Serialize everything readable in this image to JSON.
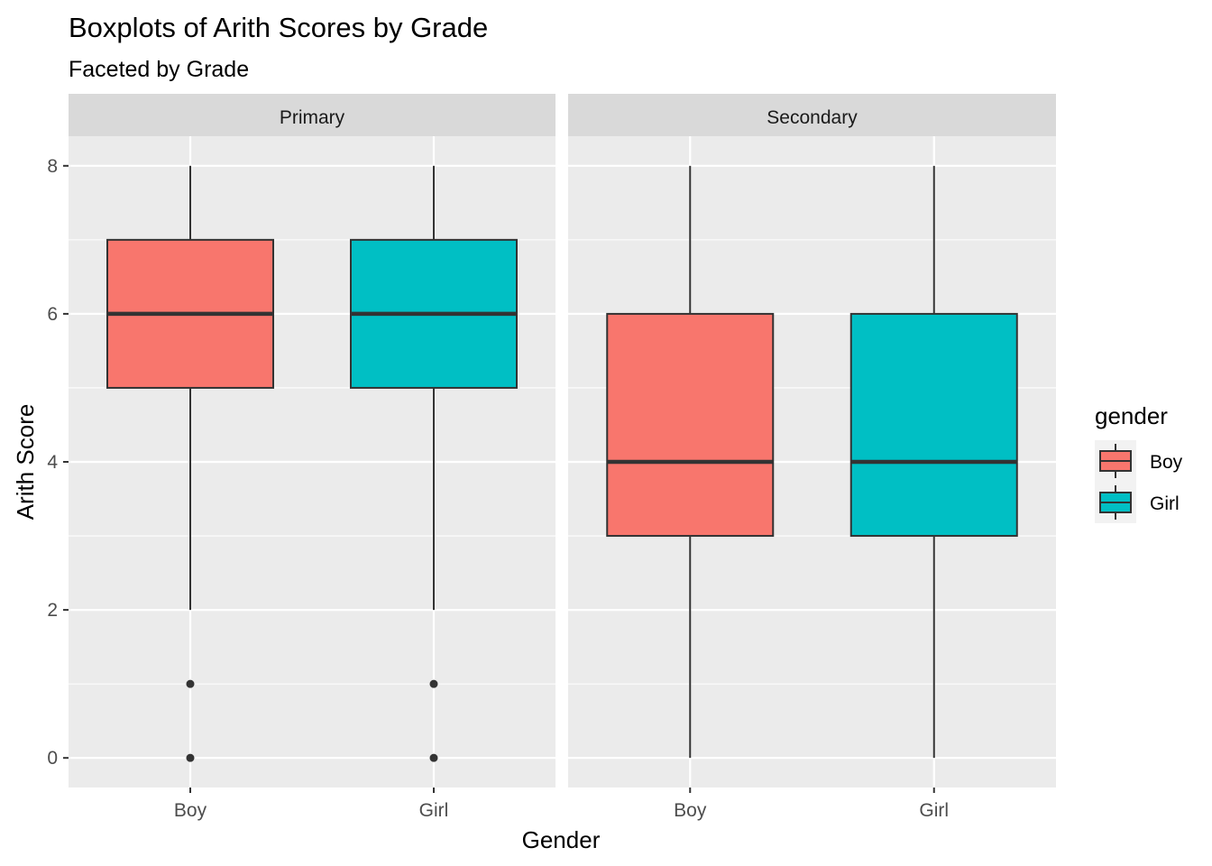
{
  "chart_data": {
    "type": "boxplot",
    "title": "Boxplots of Arith Scores by Grade",
    "subtitle": "Faceted by Grade",
    "xlabel": "Gender",
    "ylabel": "Arith Score",
    "ylim": [
      -0.4,
      8.4
    ],
    "yticks": [
      "0",
      "2",
      "4",
      "6",
      "8"
    ],
    "grid": true,
    "legend": {
      "title": "gender",
      "placement": "right",
      "entries": [
        {
          "label": "Boy",
          "color": "#F8766D"
        },
        {
          "label": "Girl",
          "color": "#00BFC4"
        }
      ]
    },
    "facets": [
      {
        "label": "Primary",
        "categories": [
          "Boy",
          "Girl"
        ],
        "boxes": [
          {
            "category": "Boy",
            "fill": "#F8766D",
            "whisker_low": 2,
            "q1": 5,
            "median": 6,
            "q3": 7,
            "whisker_high": 8,
            "outliers": [
              1,
              0
            ]
          },
          {
            "category": "Girl",
            "fill": "#00BFC4",
            "whisker_low": 2,
            "q1": 5,
            "median": 6,
            "q3": 7,
            "whisker_high": 8,
            "outliers": [
              1,
              0
            ]
          }
        ]
      },
      {
        "label": "Secondary",
        "categories": [
          "Boy",
          "Girl"
        ],
        "boxes": [
          {
            "category": "Boy",
            "fill": "#F8766D",
            "whisker_low": 0,
            "q1": 3,
            "median": 4,
            "q3": 6,
            "whisker_high": 8,
            "outliers": []
          },
          {
            "category": "Girl",
            "fill": "#00BFC4",
            "whisker_low": 0,
            "q1": 3,
            "median": 4,
            "q3": 6,
            "whisker_high": 8,
            "outliers": []
          }
        ]
      }
    ]
  }
}
